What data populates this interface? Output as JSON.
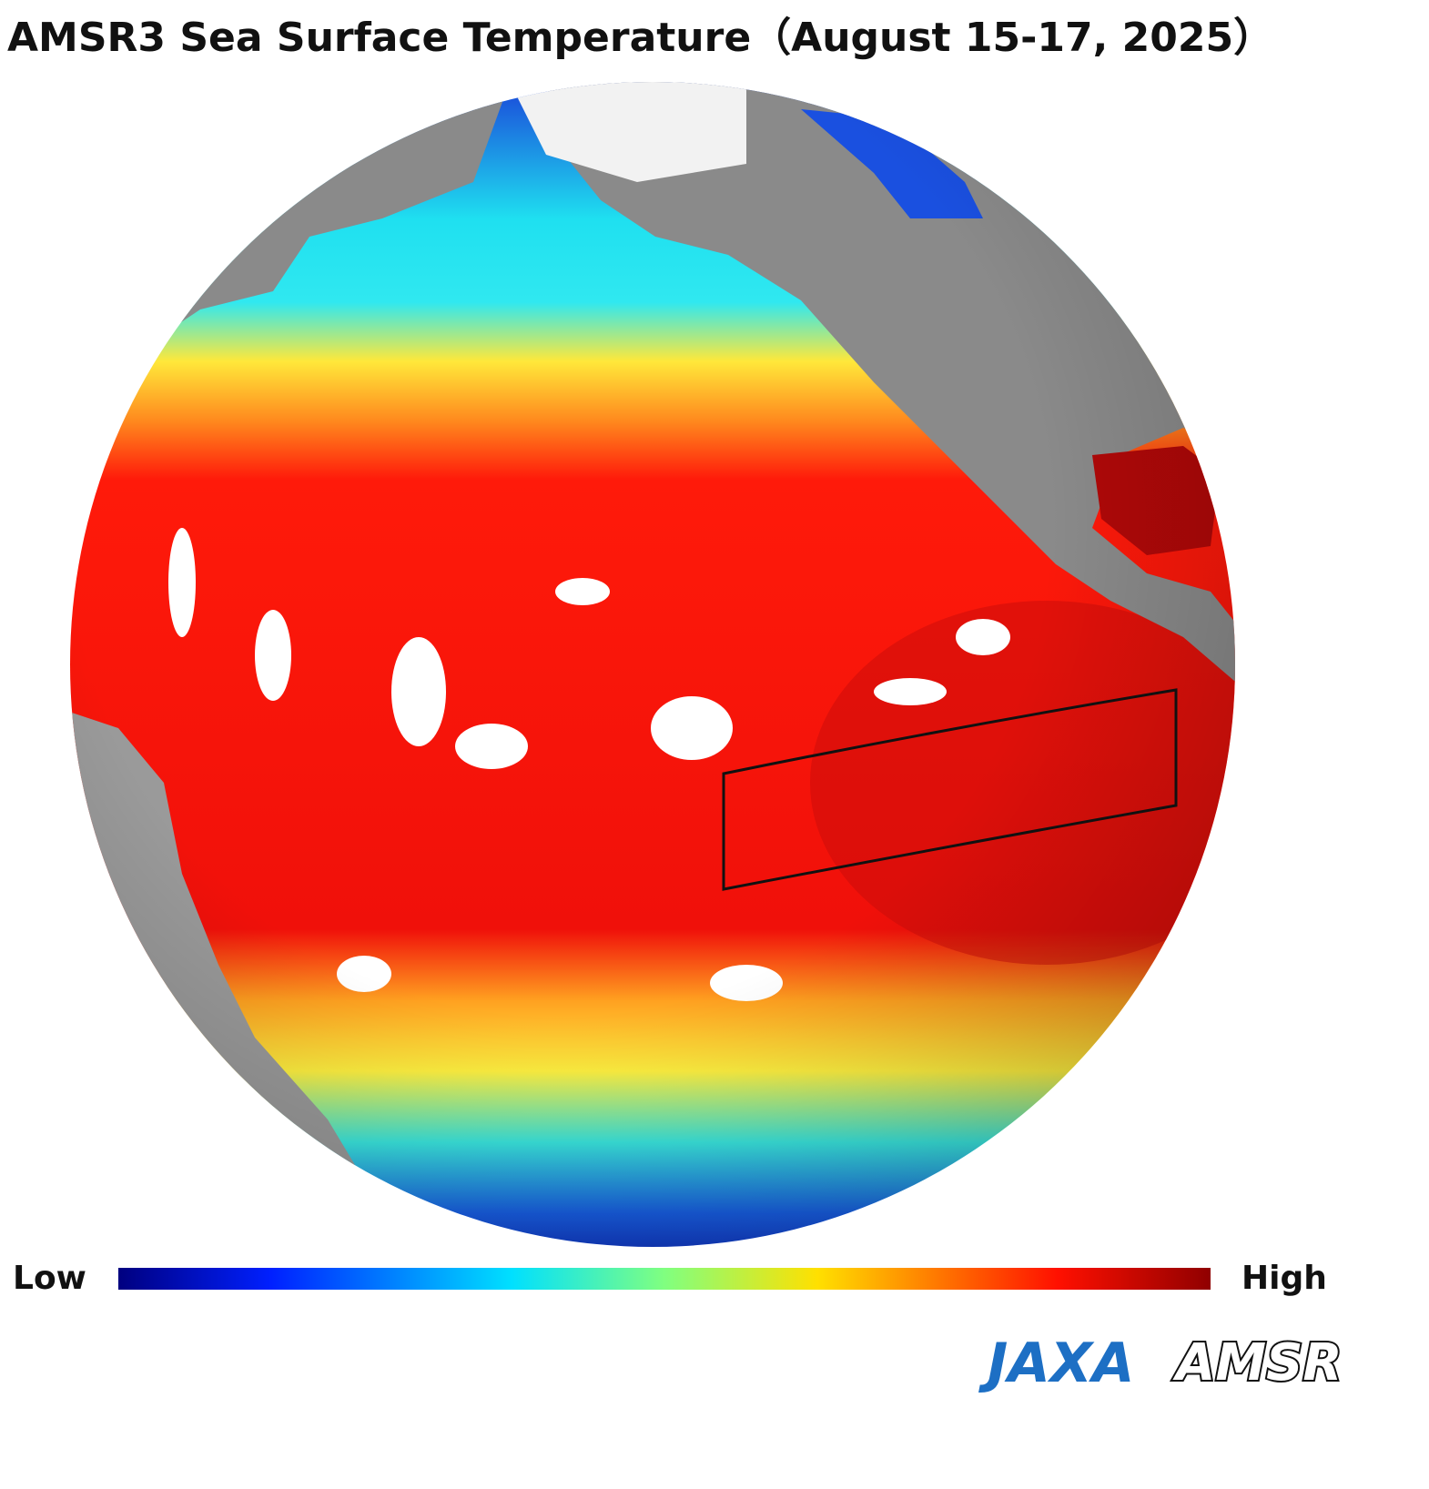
{
  "title": "AMSR3 Sea Surface Temperature（August 15-17, 2025）",
  "colorbar": {
    "low": "Low",
    "high": "High"
  },
  "logos": {
    "jaxa": "JAXA",
    "amsr": "AMSR"
  }
}
